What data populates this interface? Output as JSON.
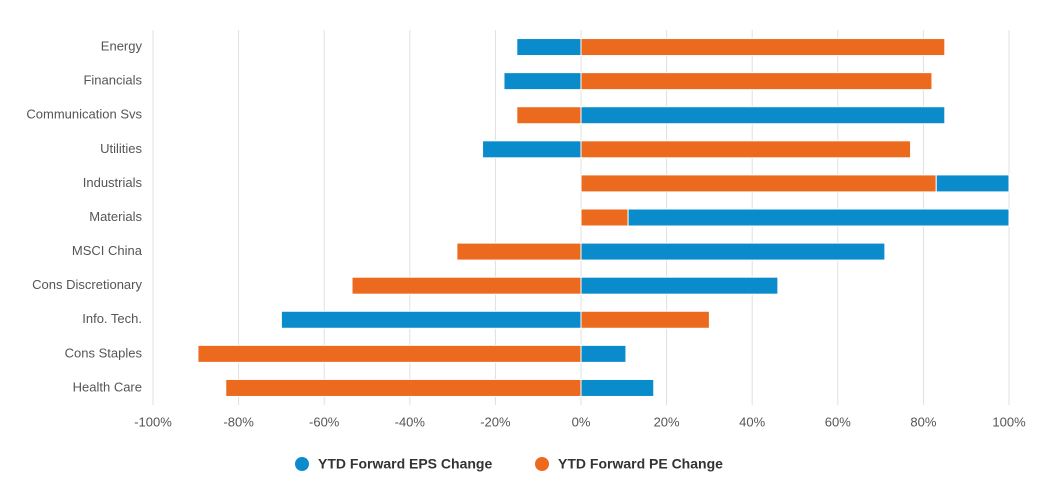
{
  "chart_data": {
    "type": "bar",
    "orientation": "horizontal",
    "stacked": true,
    "categories": [
      "Energy",
      "Financials",
      "Communication Svs",
      "Utilities",
      "Industrials",
      "Materials",
      "MSCI China",
      "Cons Discretionary",
      "Info. Tech.",
      "Cons Staples",
      "Health Care"
    ],
    "series": [
      {
        "name": "YTD Forward EPS Change",
        "color": "#0a8bcc",
        "values": [
          -15,
          -18,
          85,
          -23,
          17,
          89,
          71,
          46,
          -70,
          10.5,
          17
        ]
      },
      {
        "name": "YTD Forward PE Change",
        "color": "#ec6a1e",
        "values": [
          85,
          82,
          -15,
          77,
          83,
          11,
          -29,
          -53.5,
          30,
          -89.5,
          -83
        ]
      }
    ],
    "xlim": [
      -100,
      100
    ],
    "xticks": [
      {
        "value": -100,
        "label": "-100%"
      },
      {
        "value": -80,
        "label": "-80%"
      },
      {
        "value": -60,
        "label": "-60%"
      },
      {
        "value": -40,
        "label": "-40%"
      },
      {
        "value": -20,
        "label": "-20%"
      },
      {
        "value": 0,
        "label": "0%"
      },
      {
        "value": 20,
        "label": "20%"
      },
      {
        "value": 40,
        "label": "40%"
      },
      {
        "value": 60,
        "label": "60%"
      },
      {
        "value": 80,
        "label": "80%"
      },
      {
        "value": 100,
        "label": "100%"
      }
    ],
    "grid": true,
    "legend": "bottom"
  }
}
